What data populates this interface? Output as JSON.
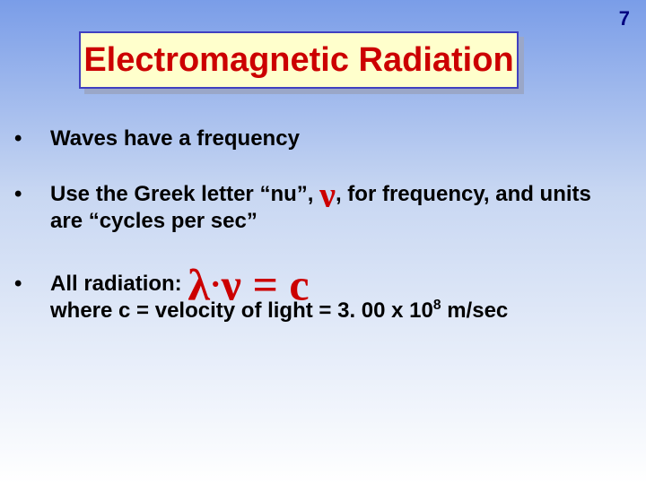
{
  "page_number": "7",
  "title": "Electromagnetic Radiation",
  "bullets": {
    "b1": "Waves have a frequency",
    "b2_pre": "Use the Greek letter “nu”, ",
    "b2_nu": "ν",
    "b2_post": ", for frequency, and units are “cycles per sec”",
    "b3_pre": "All radiation:  ",
    "b3_eq_lambda": "λ",
    "b3_eq_dot": "·",
    "b3_eq_nu": "ν",
    "b3_eq_rest": "  =  c",
    "b3_line2_a": "where c = velocity of light = 3. 00 x 10",
    "b3_line2_sup": "8",
    "b3_line2_b": " m/sec"
  },
  "colors": {
    "title_bg": "#ffffcc",
    "title_border": "#4040c0",
    "title_text": "#cc0000",
    "accent": "#cc0000",
    "page_num": "#000080"
  }
}
